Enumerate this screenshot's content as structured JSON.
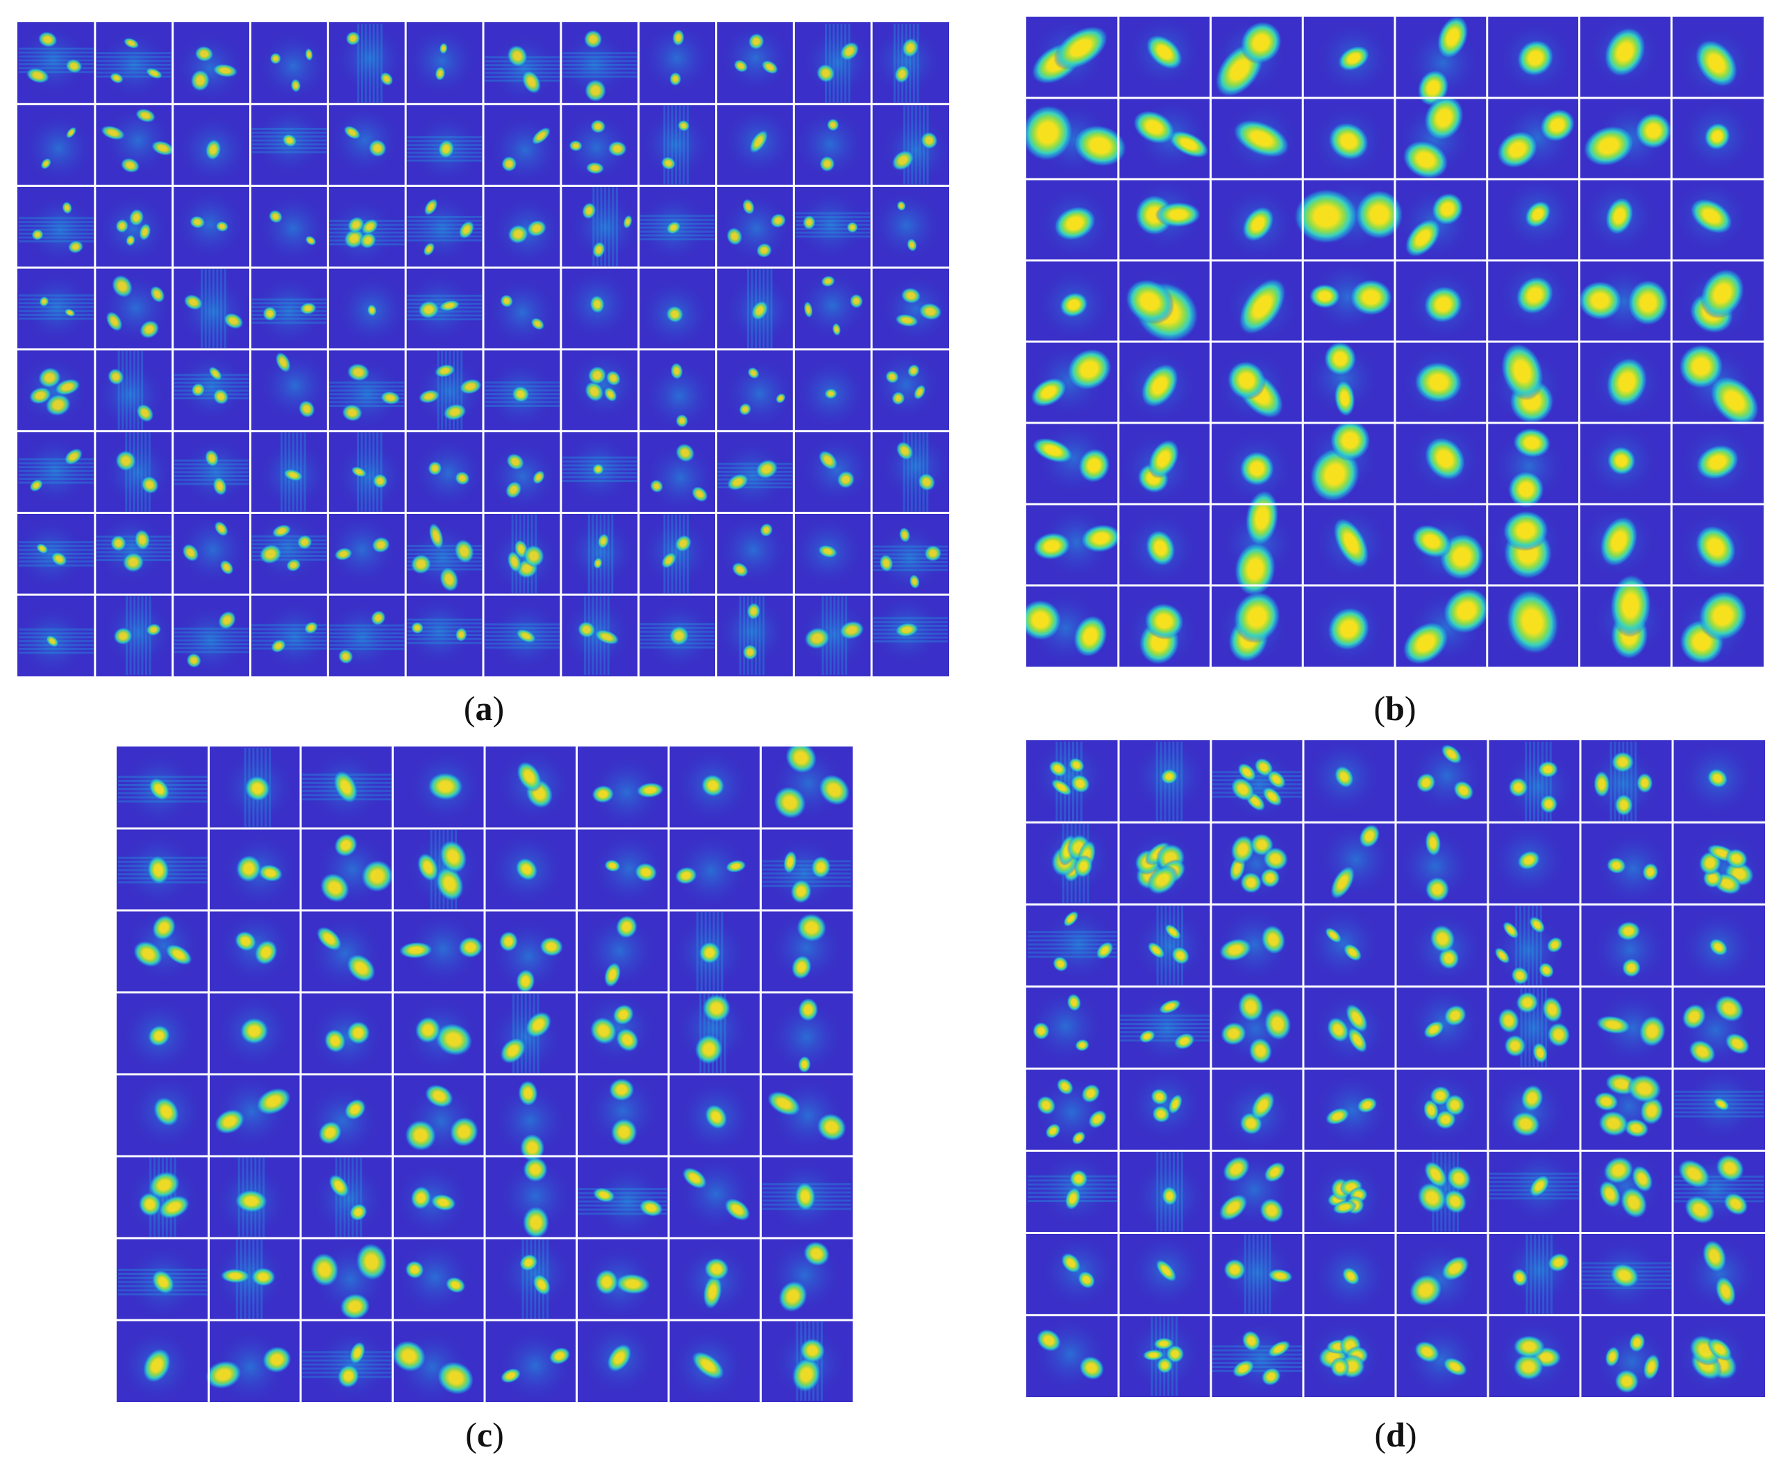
{
  "figure": {
    "panels": [
      {
        "id": "a",
        "caption_open": "(",
        "letter": "a",
        "caption_close": ")",
        "rows": 8,
        "cols": 12,
        "style": "small-speckled",
        "seed": 11
      },
      {
        "id": "b",
        "caption_open": "(",
        "letter": "b",
        "caption_close": ")",
        "rows": 8,
        "cols": 8,
        "style": "large-smooth",
        "seed": 23
      },
      {
        "id": "c",
        "caption_open": "(",
        "letter": "c",
        "caption_close": ")",
        "rows": 8,
        "cols": 8,
        "style": "medium-mixed",
        "seed": 37
      },
      {
        "id": "d",
        "caption_open": "(",
        "letter": "d",
        "caption_close": ")",
        "rows": 8,
        "cols": 8,
        "style": "medium-rings",
        "seed": 53
      }
    ],
    "colors": {
      "background": "#3a2fc8",
      "mid": "#1fa0e0",
      "cyan": "#38d1c0",
      "green": "#8fdc4a",
      "peak": "#f7e11e",
      "grid_line": "#ffffff"
    }
  }
}
